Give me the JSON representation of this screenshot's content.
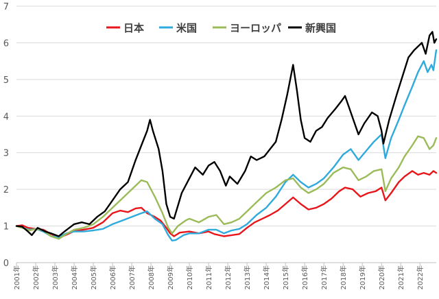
{
  "chart_data": {
    "type": "line",
    "title": "",
    "xlabel": "",
    "ylabel": "",
    "ylim": [
      0,
      7
    ],
    "yticks": [
      "0",
      "1",
      "2",
      "3",
      "4",
      "5",
      "6",
      "7"
    ],
    "xticks": [
      "2001年",
      "2002年",
      "2003年",
      "2004年",
      "2005年",
      "2006年",
      "2007年",
      "2008年",
      "2009年",
      "2010年",
      "2011年",
      "2012年",
      "2013年",
      "2014年",
      "2015年",
      "2016年",
      "2017年",
      "2018年",
      "2019年",
      "2020年",
      "2021年",
      "2022年"
    ],
    "xlim": [
      2001.0,
      2022.85
    ],
    "grid": true,
    "legend_position": "top-center",
    "series": [
      {
        "name": "日本",
        "color": "#e8161b",
        "points": [
          [
            2001.0,
            1.0
          ],
          [
            2001.3,
            1.02
          ],
          [
            2001.6,
            0.95
          ],
          [
            2002.0,
            0.92
          ],
          [
            2002.4,
            0.9
          ],
          [
            2002.8,
            0.78
          ],
          [
            2003.2,
            0.7
          ],
          [
            2003.5,
            0.74
          ],
          [
            2004.0,
            0.86
          ],
          [
            2004.5,
            0.9
          ],
          [
            2005.0,
            0.95
          ],
          [
            2005.5,
            1.1
          ],
          [
            2006.0,
            1.35
          ],
          [
            2006.4,
            1.42
          ],
          [
            2006.8,
            1.38
          ],
          [
            2007.2,
            1.48
          ],
          [
            2007.5,
            1.5
          ],
          [
            2007.8,
            1.35
          ],
          [
            2008.2,
            1.25
          ],
          [
            2008.5,
            1.15
          ],
          [
            2008.8,
            0.95
          ],
          [
            2009.0,
            0.8
          ],
          [
            2009.2,
            0.72
          ],
          [
            2009.5,
            0.82
          ],
          [
            2010.0,
            0.85
          ],
          [
            2010.5,
            0.8
          ],
          [
            2011.0,
            0.85
          ],
          [
            2011.3,
            0.78
          ],
          [
            2011.8,
            0.72
          ],
          [
            2012.2,
            0.75
          ],
          [
            2012.6,
            0.78
          ],
          [
            2013.0,
            0.95
          ],
          [
            2013.4,
            1.1
          ],
          [
            2013.8,
            1.2
          ],
          [
            2014.2,
            1.3
          ],
          [
            2014.6,
            1.42
          ],
          [
            2015.0,
            1.6
          ],
          [
            2015.4,
            1.78
          ],
          [
            2015.8,
            1.6
          ],
          [
            2016.2,
            1.45
          ],
          [
            2016.6,
            1.5
          ],
          [
            2017.0,
            1.6
          ],
          [
            2017.4,
            1.75
          ],
          [
            2017.8,
            1.95
          ],
          [
            2018.1,
            2.05
          ],
          [
            2018.5,
            2.0
          ],
          [
            2018.9,
            1.8
          ],
          [
            2019.3,
            1.9
          ],
          [
            2019.7,
            1.95
          ],
          [
            2020.0,
            2.05
          ],
          [
            2020.2,
            1.7
          ],
          [
            2020.5,
            1.9
          ],
          [
            2020.9,
            2.2
          ],
          [
            2021.2,
            2.35
          ],
          [
            2021.6,
            2.5
          ],
          [
            2021.9,
            2.4
          ],
          [
            2022.2,
            2.45
          ],
          [
            2022.5,
            2.4
          ],
          [
            2022.7,
            2.5
          ],
          [
            2022.85,
            2.45
          ]
        ]
      },
      {
        "name": "米国",
        "color": "#2eaadc",
        "points": [
          [
            2001.0,
            1.0
          ],
          [
            2001.3,
            0.95
          ],
          [
            2001.7,
            0.9
          ],
          [
            2002.0,
            0.92
          ],
          [
            2002.4,
            0.85
          ],
          [
            2002.8,
            0.72
          ],
          [
            2003.2,
            0.7
          ],
          [
            2003.6,
            0.8
          ],
          [
            2004.0,
            0.85
          ],
          [
            2004.5,
            0.85
          ],
          [
            2005.0,
            0.88
          ],
          [
            2005.5,
            0.92
          ],
          [
            2006.0,
            1.05
          ],
          [
            2006.5,
            1.15
          ],
          [
            2007.0,
            1.25
          ],
          [
            2007.5,
            1.35
          ],
          [
            2007.8,
            1.4
          ],
          [
            2008.2,
            1.2
          ],
          [
            2008.6,
            1.05
          ],
          [
            2008.9,
            0.75
          ],
          [
            2009.1,
            0.6
          ],
          [
            2009.3,
            0.62
          ],
          [
            2009.7,
            0.75
          ],
          [
            2010.0,
            0.8
          ],
          [
            2010.5,
            0.8
          ],
          [
            2011.0,
            0.9
          ],
          [
            2011.4,
            0.9
          ],
          [
            2011.8,
            0.8
          ],
          [
            2012.2,
            0.88
          ],
          [
            2012.6,
            0.92
          ],
          [
            2013.0,
            1.05
          ],
          [
            2013.5,
            1.3
          ],
          [
            2014.0,
            1.5
          ],
          [
            2014.5,
            1.8
          ],
          [
            2015.0,
            2.2
          ],
          [
            2015.4,
            2.4
          ],
          [
            2015.8,
            2.2
          ],
          [
            2016.2,
            2.05
          ],
          [
            2016.6,
            2.15
          ],
          [
            2017.0,
            2.3
          ],
          [
            2017.5,
            2.6
          ],
          [
            2018.0,
            2.95
          ],
          [
            2018.4,
            3.1
          ],
          [
            2018.8,
            2.8
          ],
          [
            2019.2,
            3.05
          ],
          [
            2019.6,
            3.3
          ],
          [
            2020.0,
            3.5
          ],
          [
            2020.2,
            2.85
          ],
          [
            2020.5,
            3.4
          ],
          [
            2020.9,
            3.9
          ],
          [
            2021.2,
            4.3
          ],
          [
            2021.6,
            4.8
          ],
          [
            2021.9,
            5.2
          ],
          [
            2022.2,
            5.5
          ],
          [
            2022.4,
            5.2
          ],
          [
            2022.6,
            5.4
          ],
          [
            2022.7,
            5.25
          ],
          [
            2022.85,
            5.8
          ]
        ]
      },
      {
        "name": "ヨーロッパ",
        "color": "#9bbb59",
        "points": [
          [
            2001.0,
            1.0
          ],
          [
            2001.3,
            0.95
          ],
          [
            2001.7,
            0.88
          ],
          [
            2002.0,
            0.92
          ],
          [
            2002.4,
            0.88
          ],
          [
            2002.8,
            0.72
          ],
          [
            2003.2,
            0.65
          ],
          [
            2003.6,
            0.78
          ],
          [
            2004.0,
            0.9
          ],
          [
            2004.5,
            0.95
          ],
          [
            2005.0,
            1.05
          ],
          [
            2005.5,
            1.25
          ],
          [
            2006.0,
            1.5
          ],
          [
            2006.5,
            1.75
          ],
          [
            2007.0,
            2.0
          ],
          [
            2007.5,
            2.25
          ],
          [
            2007.8,
            2.2
          ],
          [
            2008.2,
            1.8
          ],
          [
            2008.6,
            1.35
          ],
          [
            2008.9,
            0.95
          ],
          [
            2009.1,
            0.8
          ],
          [
            2009.4,
            1.0
          ],
          [
            2009.8,
            1.15
          ],
          [
            2010.0,
            1.2
          ],
          [
            2010.5,
            1.1
          ],
          [
            2011.0,
            1.25
          ],
          [
            2011.4,
            1.3
          ],
          [
            2011.8,
            1.05
          ],
          [
            2012.2,
            1.1
          ],
          [
            2012.6,
            1.2
          ],
          [
            2013.0,
            1.4
          ],
          [
            2013.5,
            1.65
          ],
          [
            2014.0,
            1.9
          ],
          [
            2014.5,
            2.05
          ],
          [
            2015.0,
            2.25
          ],
          [
            2015.4,
            2.3
          ],
          [
            2015.8,
            2.05
          ],
          [
            2016.2,
            1.9
          ],
          [
            2016.6,
            2.0
          ],
          [
            2017.0,
            2.15
          ],
          [
            2017.5,
            2.45
          ],
          [
            2018.0,
            2.6
          ],
          [
            2018.4,
            2.55
          ],
          [
            2018.8,
            2.25
          ],
          [
            2019.2,
            2.35
          ],
          [
            2019.6,
            2.5
          ],
          [
            2020.0,
            2.55
          ],
          [
            2020.2,
            1.95
          ],
          [
            2020.5,
            2.3
          ],
          [
            2020.9,
            2.6
          ],
          [
            2021.2,
            2.9
          ],
          [
            2021.6,
            3.2
          ],
          [
            2021.9,
            3.45
          ],
          [
            2022.2,
            3.4
          ],
          [
            2022.5,
            3.1
          ],
          [
            2022.7,
            3.2
          ],
          [
            2022.85,
            3.4
          ]
        ]
      },
      {
        "name": "新興国",
        "color": "#000000",
        "points": [
          [
            2001.0,
            1.0
          ],
          [
            2001.3,
            0.98
          ],
          [
            2001.6,
            0.85
          ],
          [
            2001.8,
            0.75
          ],
          [
            2002.1,
            0.95
          ],
          [
            2002.5,
            0.85
          ],
          [
            2002.8,
            0.8
          ],
          [
            2003.2,
            0.72
          ],
          [
            2003.5,
            0.85
          ],
          [
            2004.0,
            1.05
          ],
          [
            2004.4,
            1.1
          ],
          [
            2004.8,
            1.05
          ],
          [
            2005.2,
            1.25
          ],
          [
            2005.6,
            1.4
          ],
          [
            2006.0,
            1.7
          ],
          [
            2006.4,
            2.0
          ],
          [
            2006.8,
            2.2
          ],
          [
            2007.2,
            2.8
          ],
          [
            2007.5,
            3.2
          ],
          [
            2007.8,
            3.6
          ],
          [
            2007.95,
            3.9
          ],
          [
            2008.1,
            3.6
          ],
          [
            2008.4,
            3.1
          ],
          [
            2008.6,
            2.5
          ],
          [
            2008.8,
            1.6
          ],
          [
            2009.0,
            1.25
          ],
          [
            2009.2,
            1.2
          ],
          [
            2009.6,
            1.9
          ],
          [
            2010.0,
            2.3
          ],
          [
            2010.3,
            2.6
          ],
          [
            2010.7,
            2.4
          ],
          [
            2011.0,
            2.65
          ],
          [
            2011.3,
            2.75
          ],
          [
            2011.6,
            2.5
          ],
          [
            2011.9,
            2.1
          ],
          [
            2012.1,
            2.35
          ],
          [
            2012.5,
            2.15
          ],
          [
            2012.9,
            2.5
          ],
          [
            2013.2,
            2.9
          ],
          [
            2013.5,
            2.8
          ],
          [
            2013.9,
            2.9
          ],
          [
            2014.2,
            3.1
          ],
          [
            2014.5,
            3.3
          ],
          [
            2014.8,
            3.9
          ],
          [
            2015.1,
            4.6
          ],
          [
            2015.4,
            5.4
          ],
          [
            2015.6,
            4.7
          ],
          [
            2015.8,
            3.9
          ],
          [
            2016.0,
            3.4
          ],
          [
            2016.3,
            3.3
          ],
          [
            2016.6,
            3.6
          ],
          [
            2016.9,
            3.7
          ],
          [
            2017.2,
            3.95
          ],
          [
            2017.6,
            4.2
          ],
          [
            2017.9,
            4.4
          ],
          [
            2018.1,
            4.55
          ],
          [
            2018.4,
            4.1
          ],
          [
            2018.8,
            3.5
          ],
          [
            2019.1,
            3.8
          ],
          [
            2019.5,
            4.1
          ],
          [
            2019.8,
            4.0
          ],
          [
            2020.0,
            3.6
          ],
          [
            2020.1,
            3.25
          ],
          [
            2020.4,
            3.9
          ],
          [
            2020.8,
            4.6
          ],
          [
            2021.1,
            5.1
          ],
          [
            2021.4,
            5.6
          ],
          [
            2021.7,
            5.8
          ],
          [
            2021.9,
            5.9
          ],
          [
            2022.1,
            6.0
          ],
          [
            2022.3,
            5.7
          ],
          [
            2022.5,
            6.2
          ],
          [
            2022.65,
            6.3
          ],
          [
            2022.75,
            6.0
          ],
          [
            2022.85,
            6.1
          ]
        ]
      }
    ]
  }
}
